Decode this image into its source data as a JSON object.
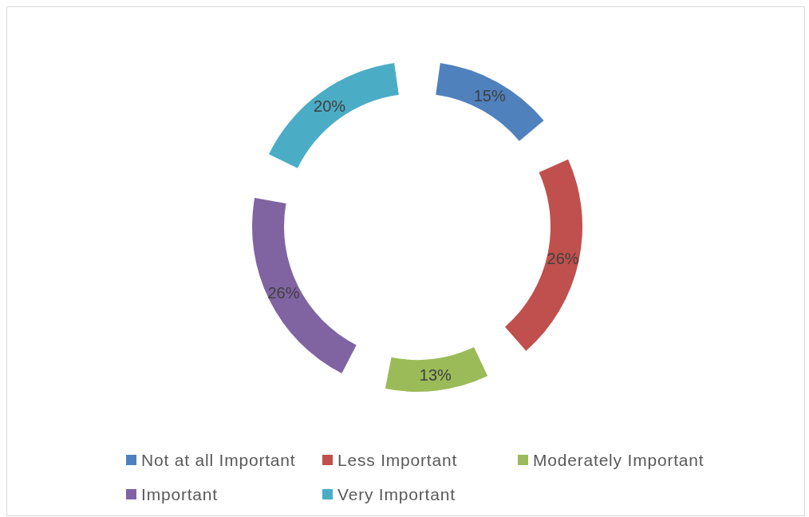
{
  "chart_data": {
    "type": "donut",
    "categories": [
      "Not at all Important",
      "Less Important",
      "Moderately Important",
      "Important",
      "Very Important"
    ],
    "values": [
      15,
      26,
      13,
      26,
      20
    ],
    "colors": [
      "#4f81bd",
      "#c0504d",
      "#9bbb59",
      "#8064a2",
      "#4bacc6"
    ],
    "value_labels": [
      "15%",
      "26%",
      "13%",
      "26%",
      "20%"
    ],
    "legend": "bottom"
  }
}
